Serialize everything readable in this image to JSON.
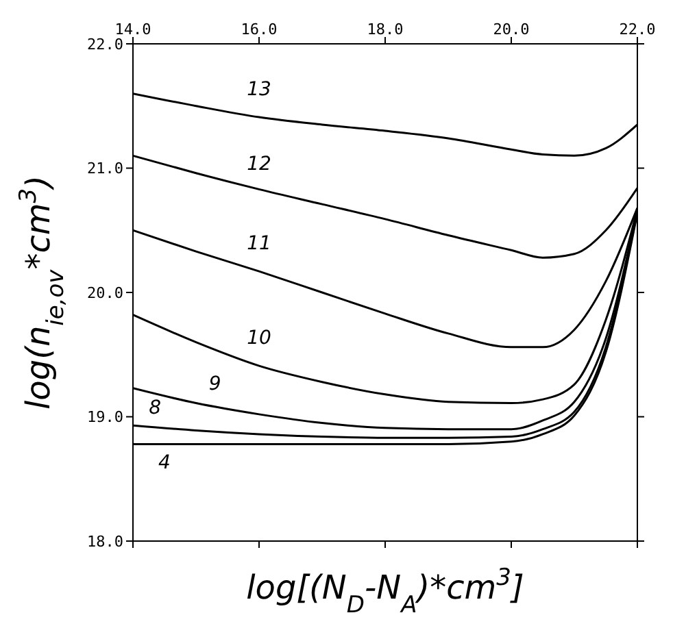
{
  "chart_data": {
    "type": "line",
    "xlabel": "log[(N$_{D}$-N$_{A}$)*cm$^{3}$]",
    "ylabel": "log(n$_{ie,ov}$*cm$^{3}$)",
    "x": [
      14,
      15,
      16,
      17,
      18,
      19,
      20,
      20.5,
      21,
      21.5,
      22
    ],
    "xlim": [
      14,
      22
    ],
    "xticks": [
      {
        "value": 14,
        "label": "14.0"
      },
      {
        "value": 16,
        "label": "16.0"
      },
      {
        "value": 18,
        "label": "18.0"
      },
      {
        "value": 20,
        "label": "20.0"
      },
      {
        "value": 22,
        "label": "22.0"
      }
    ],
    "ylim": [
      18,
      22
    ],
    "yticks": [
      {
        "value": 18,
        "label": "18.0"
      },
      {
        "value": 19,
        "label": "19.0"
      },
      {
        "value": 20,
        "label": "20.0"
      },
      {
        "value": 21,
        "label": "21.0"
      },
      {
        "value": 22,
        "label": "22.0"
      }
    ],
    "marker": "none",
    "line_style": "solid",
    "series": [
      {
        "name": "13",
        "color": "#000000",
        "values": [
          21.6,
          21.5,
          21.41,
          21.35,
          21.3,
          21.24,
          21.15,
          21.11,
          21.1,
          21.16,
          21.35
        ]
      },
      {
        "name": "12",
        "color": "#000000",
        "values": [
          21.1,
          20.96,
          20.83,
          20.71,
          20.59,
          20.46,
          20.34,
          20.28,
          20.31,
          20.5,
          20.84
        ]
      },
      {
        "name": "11",
        "color": "#000000",
        "values": [
          20.5,
          20.33,
          20.17,
          20.0,
          19.83,
          19.67,
          19.56,
          19.56,
          19.7,
          20.09,
          20.68
        ]
      },
      {
        "name": "10",
        "color": "#000000",
        "values": [
          19.82,
          19.6,
          19.41,
          19.28,
          19.18,
          19.12,
          19.11,
          19.14,
          19.26,
          19.78,
          20.67
        ]
      },
      {
        "name": "9",
        "color": "#000000",
        "values": [
          19.23,
          19.11,
          19.02,
          18.95,
          18.91,
          18.9,
          18.9,
          18.97,
          19.12,
          19.63,
          20.66
        ]
      },
      {
        "name": "8",
        "color": "#000000",
        "values": [
          18.93,
          18.89,
          18.86,
          18.84,
          18.83,
          18.83,
          18.84,
          18.9,
          19.04,
          19.56,
          20.65
        ]
      },
      {
        "name": "4",
        "color": "#000000",
        "values": [
          18.78,
          18.78,
          18.78,
          18.78,
          18.78,
          18.78,
          18.8,
          18.86,
          19.01,
          19.52,
          20.64
        ]
      }
    ]
  }
}
